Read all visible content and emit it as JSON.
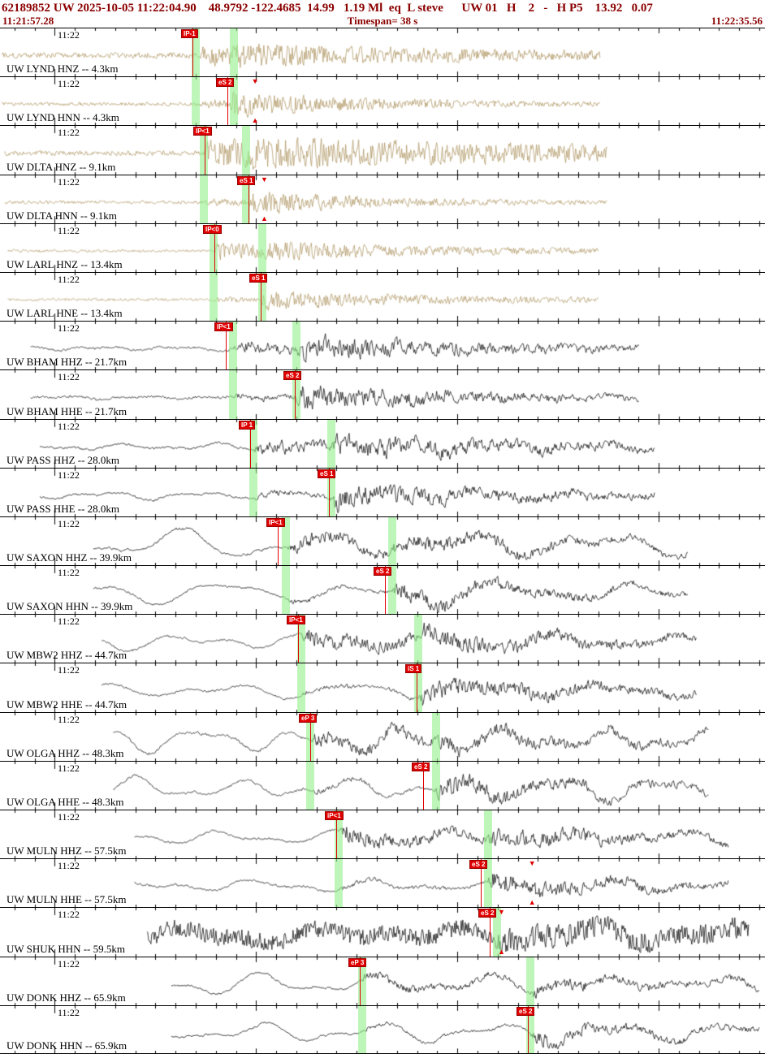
{
  "header": {
    "event_line": "62189852 UW 2025-10-05 11:22:04.90    48.9792 -122.4685  14.99   1.19 Ml  eq  L steve      UW 01   H    2   -   H P5    13.92   0.07",
    "start_time": "11:21:57.28",
    "timespan_label": "Timespan=  38 s",
    "end_time": "11:22:35.56",
    "timespan_seconds": 38
  },
  "minute_label": "11:22",
  "colors": {
    "header_text": "#8b0000",
    "pick_red": "#e00000",
    "band_green": "rgba(146,240,140,0.6)",
    "strong_motion_trace": "#b29a6a",
    "broadband_trace": "#141414"
  },
  "traces": [
    {
      "label": "UW LYND HNZ -- 4.3km",
      "color": "#b29a6a",
      "start": 0.002,
      "end": 0.785,
      "seed": 101,
      "wave": {
        "noise": 3.6,
        "hf": 0.22,
        "lp": 0,
        "lpPeriod": 200,
        "p": 0.262,
        "pAmp": 11,
        "pDecay": 320,
        "s": 0.303,
        "sAmp": 5,
        "sDecay": 200
      },
      "picks": [
        {
          "text": "IP-1",
          "x": 0.252
        }
      ],
      "bands": [
        0.256,
        0.306
      ],
      "triangles": []
    },
    {
      "label": "UW LYND HNN -- 4.3km",
      "color": "#b29a6a",
      "start": 0.002,
      "end": 0.785,
      "seed": 102,
      "wave": {
        "noise": 2.2,
        "hf": 0.22,
        "lp": 0,
        "lpPeriod": 200,
        "p": 0.262,
        "pAmp": 4,
        "pDecay": 150,
        "s": 0.3,
        "sAmp": 13,
        "sDecay": 170
      },
      "picks": [
        {
          "text": "eS 2",
          "x": 0.297
        }
      ],
      "bands": [
        0.256,
        0.306
      ],
      "triangles": [
        0.333
      ]
    },
    {
      "label": "UW DLTA HNZ -- 9.1km",
      "color": "#b29a6a",
      "start": 0.006,
      "end": 0.794,
      "seed": 103,
      "wave": {
        "noise": 3.2,
        "hf": 0.22,
        "lp": 0,
        "lpPeriod": 200,
        "p": 0.268,
        "pAmp": 15,
        "pDecay": 600,
        "s": 0.322,
        "sAmp": 5,
        "sDecay": 300
      },
      "picks": [
        {
          "text": "IP<1",
          "x": 0.268
        }
      ],
      "bands": [
        0.266,
        0.322
      ],
      "triangles": []
    },
    {
      "label": "UW DLTA HNN -- 9.1km",
      "color": "#b29a6a",
      "start": 0.006,
      "end": 0.794,
      "seed": 104,
      "wave": {
        "noise": 2.0,
        "hf": 0.22,
        "lp": 0,
        "lpPeriod": 200,
        "p": 0.268,
        "pAmp": 3,
        "pDecay": 150,
        "s": 0.325,
        "sAmp": 13,
        "sDecay": 150
      },
      "picks": [
        {
          "text": "eS 1",
          "x": 0.325
        }
      ],
      "bands": [
        0.266,
        0.322
      ],
      "triangles": [
        0.345
      ]
    },
    {
      "label": "UW LARL HNZ -- 13.4km",
      "color": "#b29a6a",
      "start": 0.01,
      "end": 0.782,
      "seed": 105,
      "wave": {
        "noise": 1.8,
        "hf": 0.22,
        "lp": 0,
        "lpPeriod": 200,
        "p": 0.28,
        "pAmp": 10,
        "pDecay": 220,
        "s": 0.342,
        "sAmp": 4,
        "sDecay": 260
      },
      "picks": [
        {
          "text": "IP<0",
          "x": 0.28
        }
      ],
      "bands": [
        0.279,
        0.343
      ],
      "triangles": []
    },
    {
      "label": "UW LARL HNE -- 13.4km",
      "color": "#b29a6a",
      "start": 0.01,
      "end": 0.782,
      "seed": 106,
      "wave": {
        "noise": 1.8,
        "hf": 0.22,
        "lp": 0,
        "lpPeriod": 200,
        "p": 0.28,
        "pAmp": 2.5,
        "pDecay": 150,
        "s": 0.341,
        "sAmp": 10,
        "sDecay": 230
      },
      "picks": [
        {
          "text": "eS 1",
          "x": 0.341
        }
      ],
      "bands": [
        0.279,
        0.343
      ],
      "triangles": []
    },
    {
      "label": "UW BHAM HHZ -- 21.7km",
      "color": "#141414",
      "start": 0.04,
      "end": 0.836,
      "seed": 107,
      "wave": {
        "noise": 1.6,
        "hf": 0.45,
        "lp": 2.5,
        "lpPeriod": 95,
        "p": 0.305,
        "pAmp": 7,
        "pDecay": 190,
        "s": 0.388,
        "sAmp": 11,
        "sDecay": 270
      },
      "picks": [
        {
          "text": "IP<1",
          "x": 0.295
        }
      ],
      "bands": [
        0.305,
        0.388
      ],
      "triangles": []
    },
    {
      "label": "UW BHAM HHE -- 21.7km",
      "color": "#141414",
      "start": 0.04,
      "end": 0.836,
      "seed": 108,
      "wave": {
        "noise": 1.6,
        "hf": 0.45,
        "lp": 2.5,
        "lpPeriod": 95,
        "p": 0.305,
        "pAmp": 3,
        "pDecay": 150,
        "s": 0.387,
        "sAmp": 15,
        "sDecay": 230
      },
      "picks": [
        {
          "text": "eS 2",
          "x": 0.385
        }
      ],
      "bands": [
        0.305,
        0.388
      ],
      "triangles": []
    },
    {
      "label": "UW PASS HHZ -- 28.0km",
      "color": "#141414",
      "start": 0.052,
      "end": 0.856,
      "seed": 109,
      "wave": {
        "noise": 1.5,
        "hf": 0.5,
        "lp": 4,
        "lpPeriod": 115,
        "p": 0.33,
        "pAmp": 9,
        "pDecay": 210,
        "s": 0.433,
        "sAmp": 10,
        "sDecay": 300
      },
      "picks": [
        {
          "text": "IP 1",
          "x": 0.327
        }
      ],
      "bands": [
        0.331,
        0.433
      ],
      "triangles": []
    },
    {
      "label": "UW PASS HHE -- 28.0km",
      "color": "#141414",
      "start": 0.052,
      "end": 0.856,
      "seed": 110,
      "wave": {
        "noise": 1.5,
        "hf": 0.5,
        "lp": 4,
        "lpPeriod": 115,
        "p": 0.33,
        "pAmp": 3,
        "pDecay": 150,
        "s": 0.432,
        "sAmp": 13,
        "sDecay": 280
      },
      "picks": [
        {
          "text": "eS 1",
          "x": 0.43
        }
      ],
      "bands": [
        0.331,
        0.433
      ],
      "triangles": []
    },
    {
      "label": "UW SAXON HHZ -- 39.9km",
      "color": "#141414",
      "start": 0.122,
      "end": 0.9,
      "seed": 111,
      "wave": {
        "noise": 1.2,
        "hf": 0.4,
        "lp": 14,
        "lpPeriod": 175,
        "p": 0.375,
        "pAmp": 8,
        "pDecay": 260,
        "s": 0.512,
        "sAmp": 5,
        "sDecay": 260
      },
      "picks": [
        {
          "text": "IP<1",
          "x": 0.363
        }
      ],
      "bands": [
        0.374,
        0.513
      ],
      "triangles": []
    },
    {
      "label": "UW SAXON HHN -- 39.9km",
      "color": "#141414",
      "start": 0.122,
      "end": 0.9,
      "seed": 112,
      "wave": {
        "noise": 1.2,
        "hf": 0.4,
        "lp": 10,
        "lpPeriod": 170,
        "p": 0.375,
        "pAmp": 2,
        "pDecay": 150,
        "s": 0.51,
        "sAmp": 10,
        "sDecay": 240
      },
      "picks": [
        {
          "text": "eS 2",
          "x": 0.503
        }
      ],
      "bands": [
        0.374,
        0.513
      ],
      "triangles": []
    },
    {
      "label": "UW MBW2 HHZ -- 44.7km",
      "color": "#141414",
      "start": 0.133,
      "end": 0.911,
      "seed": 113,
      "wave": {
        "noise": 1.2,
        "hf": 0.38,
        "lp": 9,
        "lpPeriod": 150,
        "p": 0.393,
        "pAmp": 10,
        "pDecay": 360,
        "s": 0.547,
        "sAmp": 5,
        "sDecay": 250
      },
      "picks": [
        {
          "text": "IP<1",
          "x": 0.39
        }
      ],
      "bands": [
        0.394,
        0.547
      ],
      "triangles": []
    },
    {
      "label": "UW MBW2 HHE -- 44.7km",
      "color": "#141414",
      "start": 0.133,
      "end": 0.911,
      "seed": 114,
      "wave": {
        "noise": 1.2,
        "hf": 0.4,
        "lp": 8,
        "lpPeriod": 155,
        "p": 0.393,
        "pAmp": 2,
        "pDecay": 150,
        "s": 0.547,
        "sAmp": 12,
        "sDecay": 260
      },
      "picks": [
        {
          "text": "iS 1",
          "x": 0.545
        }
      ],
      "bands": [
        0.394,
        0.547
      ],
      "triangles": []
    },
    {
      "label": "UW OLGA HHZ -- 48.3km",
      "color": "#141414",
      "start": 0.148,
      "end": 0.927,
      "seed": 115,
      "wave": {
        "noise": 1.4,
        "hf": 0.42,
        "lp": 13,
        "lpPeriod": 125,
        "p": 0.407,
        "pAmp": 9,
        "pDecay": 320,
        "s": 0.57,
        "sAmp": 5,
        "sDecay": 260
      },
      "picks": [
        {
          "text": "eP 3",
          "x": 0.405
        }
      ],
      "bands": [
        0.406,
        0.57
      ],
      "triangles": []
    },
    {
      "label": "UW OLGA HHE -- 48.3km",
      "color": "#141414",
      "start": 0.148,
      "end": 0.927,
      "seed": 116,
      "wave": {
        "noise": 1.4,
        "hf": 0.42,
        "lp": 11,
        "lpPeriod": 130,
        "p": 0.407,
        "pAmp": 2,
        "pDecay": 150,
        "s": 0.568,
        "sAmp": 11,
        "sDecay": 270
      },
      "picks": [
        {
          "text": "eS 2",
          "x": 0.553
        }
      ],
      "bands": [
        0.406,
        0.57
      ],
      "triangles": []
    },
    {
      "label": "UW MULN HHZ -- 57.5km",
      "color": "#141414",
      "start": 0.176,
      "end": 0.953,
      "seed": 117,
      "wave": {
        "noise": 1.3,
        "hf": 0.4,
        "lp": 7,
        "lpPeriod": 140,
        "p": 0.442,
        "pAmp": 11,
        "pDecay": 190,
        "s": 0.638,
        "sAmp": 9,
        "sDecay": 210
      },
      "picks": [
        {
          "text": "iP<1",
          "x": 0.44
        }
      ],
      "bands": [
        0.443,
        0.638
      ],
      "triangles": []
    },
    {
      "label": "UW MULN HHE -- 57.5km",
      "color": "#141414",
      "start": 0.176,
      "end": 0.953,
      "seed": 118,
      "wave": {
        "noise": 1.3,
        "hf": 0.4,
        "lp": 7,
        "lpPeriod": 145,
        "p": 0.442,
        "pAmp": 2,
        "pDecay": 150,
        "s": 0.637,
        "sAmp": 13,
        "sDecay": 190
      },
      "picks": [
        {
          "text": "eS 2",
          "x": 0.628
        }
      ],
      "bands": [
        0.443,
        0.638
      ],
      "triangles": [
        0.695
      ]
    },
    {
      "label": "UW SHUK HHN -- 59.5km",
      "color": "#141414",
      "start": 0.192,
      "end": 0.979,
      "seed": 119,
      "wave": {
        "noise": 11,
        "hf": 0.14,
        "lp": 8,
        "lpPeriod": 165,
        "p": 0,
        "pAmp": 0,
        "pDecay": 1,
        "s": 0.645,
        "sAmp": 5,
        "sDecay": 300
      },
      "picks": [
        {
          "text": "eS 2",
          "x": 0.64
        }
      ],
      "bands": [
        0.65
      ],
      "triangles": [
        0.655
      ]
    },
    {
      "label": "UW DONK HHZ -- 65.9km",
      "color": "#141414",
      "start": 0.224,
      "end": 0.993,
      "seed": 120,
      "wave": {
        "noise": 1.3,
        "hf": 0.45,
        "lp": 10,
        "lpPeriod": 140,
        "p": 0.472,
        "pAmp": 5,
        "pDecay": 260,
        "s": 0.693,
        "sAmp": 5,
        "sDecay": 260
      },
      "picks": [
        {
          "text": "eP 3",
          "x": 0.47
        }
      ],
      "bands": [
        0.473,
        0.693
      ],
      "triangles": []
    },
    {
      "label": "UW DONK HHN -- 65.9km",
      "color": "#141414",
      "start": 0.224,
      "end": 0.993,
      "seed": 121,
      "wave": {
        "noise": 1.3,
        "hf": 0.45,
        "lp": 10,
        "lpPeriod": 145,
        "p": 0.472,
        "pAmp": 1.5,
        "pDecay": 150,
        "s": 0.693,
        "sAmp": 8,
        "sDecay": 230
      },
      "picks": [
        {
          "text": "eS 2",
          "x": 0.69
        }
      ],
      "bands": [
        0.473,
        0.693
      ],
      "triangles": []
    }
  ]
}
